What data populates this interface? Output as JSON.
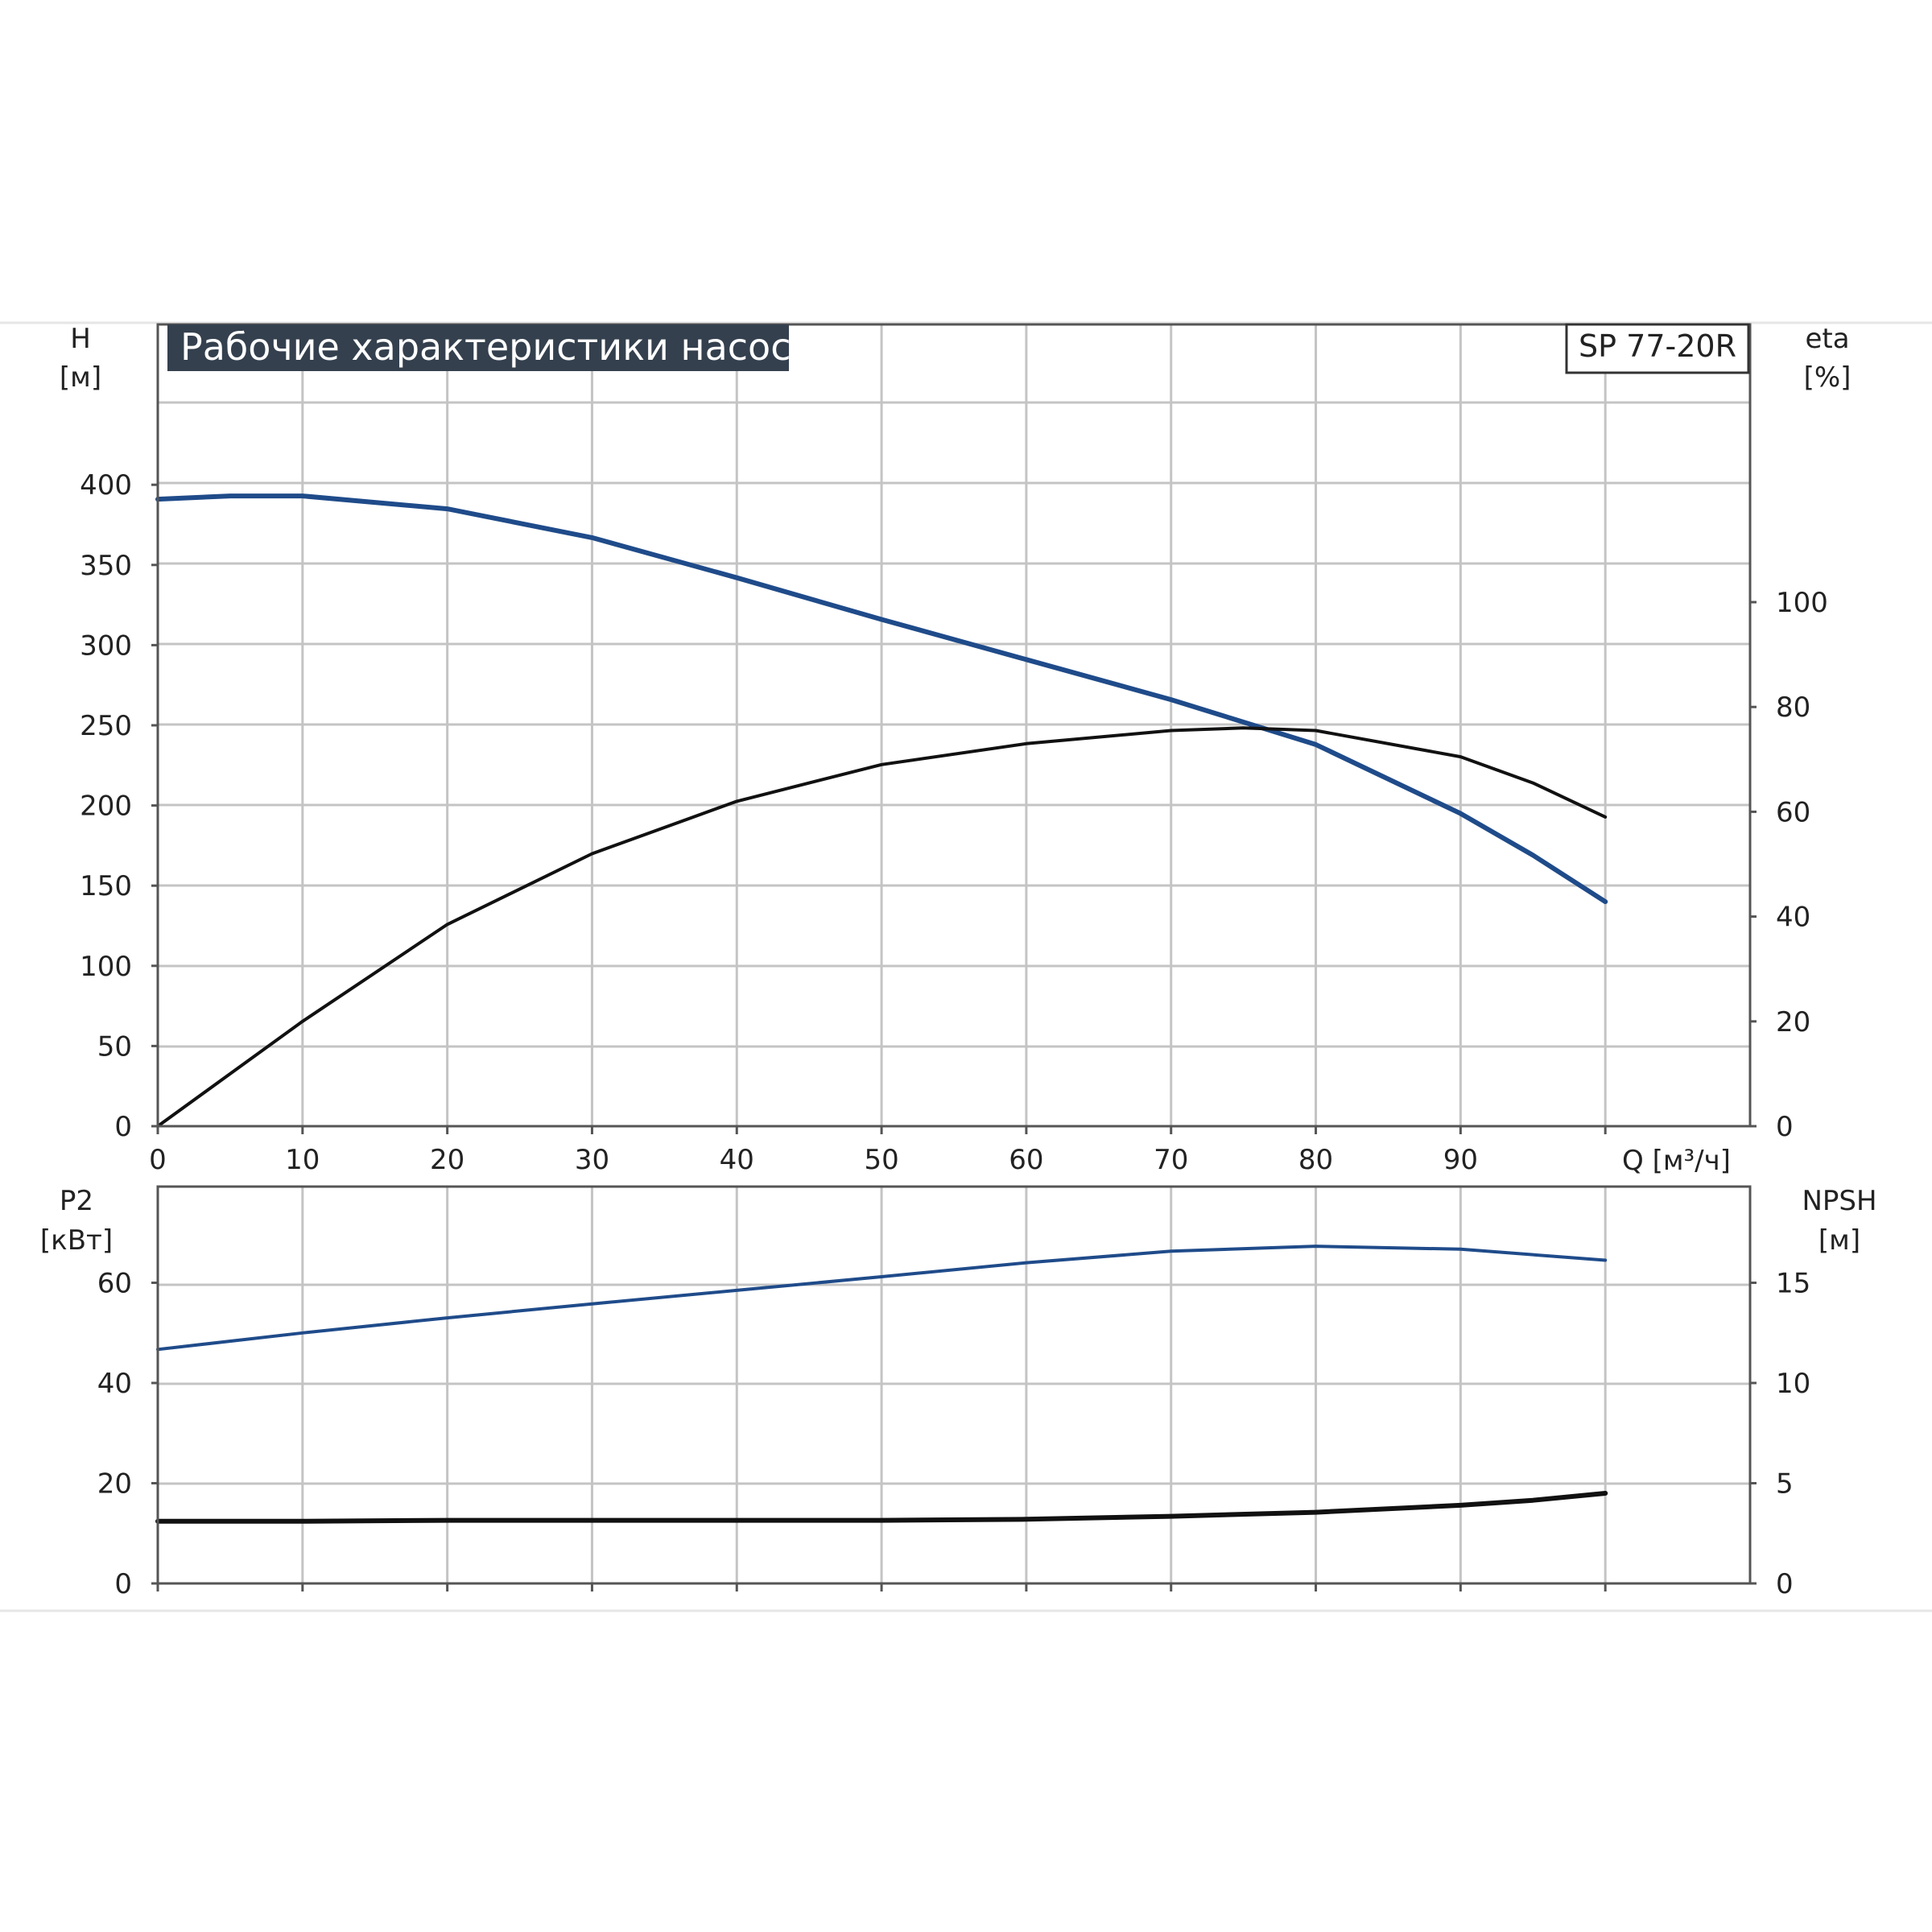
{
  "chart_title": "Рабочие характеристики насоса",
  "model": "SP 77-20R",
  "colors": {
    "head": "#1f4b8a",
    "efficiency": "#111111",
    "power": "#1f4b8a",
    "npsh": "#111111",
    "title_bg": "#34404e"
  },
  "chart_data": [
    {
      "type": "line",
      "x_axis": {
        "label": "Q [м³/ч]",
        "ticks": [
          "0",
          "10",
          "20",
          "30",
          "40",
          "50",
          "60",
          "70",
          "80",
          "90"
        ],
        "range": [
          0,
          110
        ]
      },
      "y_left": {
        "label_line1": "H",
        "label_line2": "[м]",
        "ticks": [
          "0",
          "50",
          "100",
          "150",
          "200",
          "250",
          "300",
          "350",
          "400"
        ],
        "range": [
          0,
          500
        ]
      },
      "y_right": {
        "label_line1": "eta",
        "label_line2": "[%]",
        "ticks": [
          "0",
          "20",
          "40",
          "60",
          "80",
          "100"
        ],
        "range": [
          0,
          153
        ]
      },
      "grid": true,
      "series": [
        {
          "key": "head",
          "axis": "left",
          "width": 6,
          "x": [
            0,
            5,
            10,
            20,
            30,
            40,
            50,
            60,
            70,
            80,
            90,
            95,
            100
          ],
          "y": [
            391,
            393,
            393,
            385,
            367,
            342,
            316,
            291,
            266,
            238,
            195,
            169,
            140
          ]
        },
        {
          "key": "efficiency",
          "axis": "right",
          "width": 4,
          "x": [
            0,
            5,
            10,
            20,
            30,
            40,
            50,
            60,
            70,
            75,
            80,
            90,
            95,
            100
          ],
          "y": [
            0,
            10,
            20,
            38.5,
            52,
            62,
            69,
            73,
            75.5,
            76,
            75.5,
            70.5,
            65.5,
            59
          ]
        }
      ]
    },
    {
      "type": "line",
      "x_axis": {
        "range": [
          0,
          110
        ]
      },
      "y_left": {
        "label_line1": "P2",
        "label_line2": "[кВт]",
        "ticks": [
          "0",
          "20",
          "40",
          "60"
        ],
        "range": [
          0,
          79.2
        ]
      },
      "y_right": {
        "label_line1": "NPSH",
        "label_line2": "[м]",
        "ticks": [
          "0",
          "5",
          "10",
          "15"
        ],
        "range": [
          0,
          19.8
        ]
      },
      "grid": true,
      "series": [
        {
          "key": "power",
          "axis": "left",
          "width": 4,
          "x": [
            0,
            10,
            20,
            30,
            40,
            50,
            60,
            70,
            80,
            90,
            100
          ],
          "y": [
            46.7,
            50,
            53,
            55.8,
            58.5,
            61.2,
            64,
            66.3,
            67.3,
            66.7,
            64.5
          ]
        },
        {
          "key": "npsh",
          "axis": "right",
          "width": 6,
          "x": [
            0,
            5,
            10,
            20,
            30,
            40,
            50,
            60,
            70,
            80,
            90,
            95,
            100
          ],
          "y": [
            3.1,
            3.1,
            3.1,
            3.15,
            3.15,
            3.15,
            3.15,
            3.2,
            3.35,
            3.55,
            3.9,
            4.15,
            4.5
          ]
        }
      ]
    }
  ]
}
